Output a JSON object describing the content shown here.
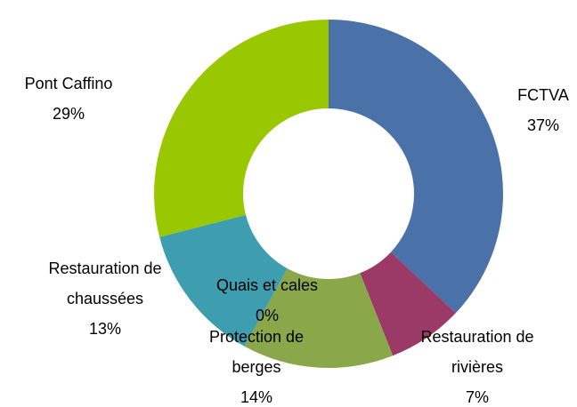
{
  "chart_data": {
    "type": "donut",
    "categories": [
      "FCTVA",
      "Restauration de rivières",
      "Protection de berges",
      "Quais et cales",
      "Restauration de chaussées",
      "Pont Caffino"
    ],
    "values": [
      37,
      7,
      14,
      0,
      13,
      29
    ],
    "value_labels": [
      "37%",
      "7%",
      "14%",
      "0%",
      "13%",
      "29%"
    ],
    "colors": [
      "#4a72a8",
      "#9b3a66",
      "#8aa84a",
      "#7f7f7f",
      "#3f9db0",
      "#99c800"
    ]
  }
}
